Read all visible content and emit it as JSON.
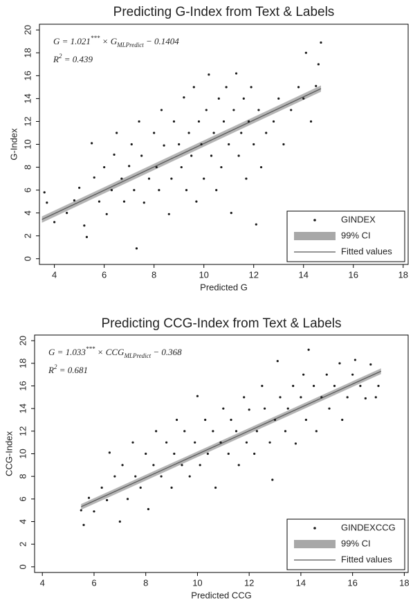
{
  "chart_data": [
    {
      "type": "scatter",
      "title": "Predicting G-Index from Text & Labels",
      "x_label": "Predicted G",
      "y_label": "G-Index",
      "xlim": [
        3.4,
        18.2
      ],
      "xticks": [
        4,
        6,
        8,
        10,
        12,
        14,
        16,
        18
      ],
      "ylim": [
        -0.5,
        20.5
      ],
      "yticks": [
        0,
        2,
        4,
        6,
        8,
        10,
        12,
        14,
        16,
        18,
        20
      ],
      "grid": false,
      "legend": "lower right",
      "equation": {
        "lhs": "G = 1.021",
        "stars": "***",
        "mid": " × G",
        "sub": "MLPredict",
        "rhs": " − 0.1404"
      },
      "r2": {
        "lhs": "R",
        "sup": "2",
        "rhs": " = 0.439"
      },
      "series": [
        {
          "name": "GINDEX",
          "color": "#1a1a1a",
          "x": [
            3.6,
            3.7,
            4.0,
            4.5,
            4.8,
            5.0,
            5.2,
            5.3,
            5.5,
            5.6,
            5.8,
            6.0,
            6.1,
            6.3,
            6.4,
            6.5,
            6.7,
            6.8,
            7.0,
            7.1,
            7.2,
            7.3,
            7.4,
            7.5,
            7.6,
            7.8,
            8.0,
            8.1,
            8.2,
            8.3,
            8.4,
            8.6,
            8.7,
            8.8,
            9.0,
            9.1,
            9.2,
            9.3,
            9.4,
            9.5,
            9.6,
            9.7,
            9.8,
            9.9,
            10.0,
            10.1,
            10.2,
            10.3,
            10.4,
            10.5,
            10.6,
            10.7,
            10.8,
            10.9,
            11.0,
            11.1,
            11.2,
            11.3,
            11.4,
            11.5,
            11.6,
            11.7,
            11.8,
            11.9,
            12.0,
            12.1,
            12.2,
            12.3,
            12.5,
            12.8,
            13.0,
            13.2,
            13.5,
            13.8,
            14.0,
            14.1,
            14.3,
            14.5,
            14.6,
            14.7
          ],
          "values": [
            5.8,
            4.9,
            3.2,
            4.0,
            5.1,
            6.2,
            2.9,
            1.9,
            10.1,
            7.1,
            5.0,
            8.0,
            3.9,
            6.0,
            9.1,
            11.0,
            7.0,
            5.0,
            8.1,
            10.0,
            6.0,
            0.9,
            12.0,
            9.0,
            4.9,
            7.0,
            11.0,
            8.0,
            6.0,
            13.0,
            9.9,
            3.9,
            7.0,
            12.0,
            10.0,
            8.0,
            14.1,
            6.0,
            11.0,
            9.0,
            15.0,
            5.0,
            12.0,
            10.0,
            7.0,
            13.0,
            16.1,
            9.0,
            11.0,
            6.0,
            14.0,
            8.0,
            12.0,
            15.0,
            10.0,
            4.0,
            13.0,
            16.2,
            9.0,
            11.0,
            14.0,
            7.0,
            12.0,
            15.0,
            10.0,
            3.0,
            13.0,
            8.0,
            11.0,
            12.0,
            14.0,
            10.0,
            13.0,
            15.0,
            14.0,
            18.0,
            12.0,
            15.1,
            17.0,
            18.9
          ]
        },
        {
          "name": "99% CI",
          "color": "#a8a8a8",
          "x": [
            3.5,
            14.7
          ],
          "lower": [
            3.15,
            14.6
          ],
          "upper": [
            3.7,
            15.15
          ]
        },
        {
          "name": "Fitted values",
          "color": "#555555",
          "x": [
            3.5,
            14.7
          ],
          "values": [
            3.43,
            14.87
          ]
        }
      ]
    },
    {
      "type": "scatter",
      "title": "Predicting CCG-Index from Text & Labels",
      "x_label": "Predicted CCG",
      "y_label": "CCG-Index",
      "xlim": [
        3.7,
        18.15
      ],
      "xticks": [
        4,
        6,
        8,
        10,
        12,
        14,
        16,
        18
      ],
      "ylim": [
        -0.5,
        20.5
      ],
      "yticks": [
        0,
        2,
        4,
        6,
        8,
        10,
        12,
        14,
        16,
        18,
        20
      ],
      "grid": false,
      "legend": "lower right",
      "equation": {
        "lhs": "G = 1.033",
        "stars": "***",
        "mid": " × CCG",
        "sub": "MLPredict",
        "rhs": " − 0.368"
      },
      "r2": {
        "lhs": "R",
        "sup": "2",
        "rhs": " = 0.681"
      },
      "series": [
        {
          "name": "GINDEXCCG",
          "color": "#1a1a1a",
          "x": [
            5.5,
            5.6,
            5.8,
            6.0,
            6.3,
            6.5,
            6.6,
            6.8,
            7.0,
            7.1,
            7.3,
            7.5,
            7.6,
            7.8,
            8.0,
            8.1,
            8.3,
            8.4,
            8.6,
            8.8,
            9.0,
            9.1,
            9.2,
            9.4,
            9.5,
            9.7,
            9.9,
            10.0,
            10.1,
            10.3,
            10.4,
            10.6,
            10.7,
            10.9,
            11.0,
            11.2,
            11.3,
            11.5,
            11.6,
            11.8,
            11.9,
            12.0,
            12.2,
            12.3,
            12.5,
            12.6,
            12.8,
            12.9,
            13.0,
            13.1,
            13.2,
            13.4,
            13.5,
            13.7,
            13.8,
            14.0,
            14.1,
            14.2,
            14.3,
            14.5,
            14.6,
            14.8,
            15.0,
            15.1,
            15.3,
            15.5,
            15.6,
            15.8,
            16.0,
            16.1,
            16.3,
            16.5,
            16.7,
            16.9,
            17.0
          ],
          "values": [
            5.0,
            3.7,
            6.1,
            4.9,
            7.0,
            5.9,
            10.1,
            8.0,
            4.0,
            9.0,
            6.0,
            11.0,
            8.0,
            7.0,
            10.0,
            5.1,
            9.0,
            12.0,
            8.0,
            11.0,
            7.0,
            10.0,
            13.0,
            9.0,
            12.0,
            8.0,
            11.0,
            15.1,
            9.0,
            13.0,
            10.0,
            12.0,
            7.0,
            11.0,
            14.0,
            10.0,
            13.0,
            12.0,
            9.0,
            15.0,
            11.0,
            13.9,
            10.0,
            12.0,
            16.0,
            14.0,
            11.0,
            7.7,
            13.0,
            18.2,
            15.0,
            12.0,
            14.0,
            16.0,
            10.9,
            15.0,
            17.0,
            13.0,
            19.2,
            16.0,
            12.0,
            15.0,
            17.0,
            14.0,
            16.0,
            18.0,
            13.0,
            15.0,
            17.0,
            18.3,
            16.0,
            14.9,
            17.9,
            15.0,
            16.0
          ]
        },
        {
          "name": "99% CI",
          "color": "#a8a8a8",
          "x": [
            5.5,
            17.1
          ],
          "lower": [
            5.05,
            17.05
          ],
          "upper": [
            5.55,
            17.55
          ]
        },
        {
          "name": "Fitted values",
          "color": "#555555",
          "x": [
            5.5,
            17.1
          ],
          "values": [
            5.31,
            17.3
          ]
        }
      ]
    }
  ]
}
